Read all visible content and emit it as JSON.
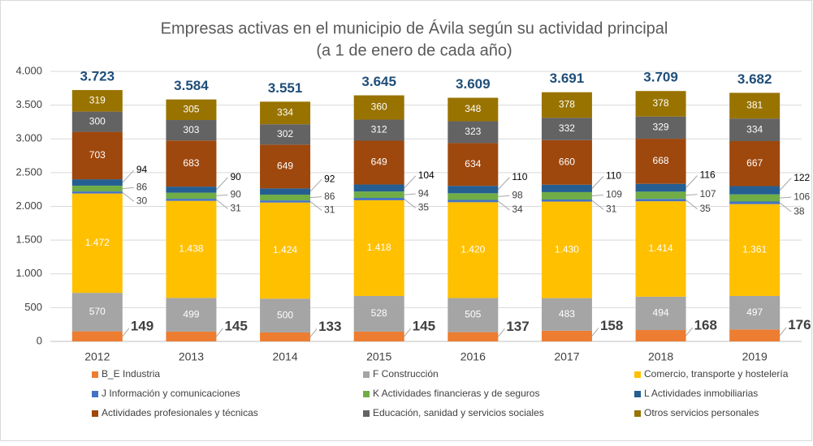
{
  "chart_data": {
    "type": "stacked_bar",
    "title": "Empresas activas en el municipio de Ávila según su actividad principal",
    "subtitle": "(a 1 de enero de cada año)",
    "categories": [
      "2012",
      "2013",
      "2014",
      "2015",
      "2016",
      "2017",
      "2018",
      "2019"
    ],
    "series": [
      {
        "name": "B_E Industria",
        "color": "#ed7d31",
        "values": [
          149,
          145,
          133,
          145,
          137,
          158,
          168,
          176
        ]
      },
      {
        "name": "F Construcción",
        "color": "#a5a5a5",
        "values": [
          570,
          499,
          500,
          528,
          505,
          483,
          494,
          497
        ]
      },
      {
        "name": "Comercio, transporte y hostelería",
        "color": "#ffc000",
        "values": [
          1472,
          1438,
          1424,
          1418,
          1420,
          1430,
          1414,
          1361
        ],
        "value_labels": [
          "1.472",
          "1.438",
          "1.424",
          "1.418",
          "1.420",
          "1.430",
          "1.414",
          "1.361"
        ]
      },
      {
        "name": "J Información y comunicaciones",
        "color": "#4472c4",
        "values": [
          30,
          31,
          31,
          35,
          34,
          31,
          35,
          38
        ]
      },
      {
        "name": "K Actividades financieras y de seguros",
        "color": "#70ad47",
        "values": [
          86,
          90,
          86,
          94,
          98,
          109,
          107,
          106
        ]
      },
      {
        "name": "L Actividades inmobiliarias",
        "color": "#255e91",
        "values": [
          94,
          90,
          92,
          104,
          110,
          110,
          116,
          122
        ]
      },
      {
        "name": "Actividades profesionales y técnicas",
        "color": "#9e480e",
        "values": [
          703,
          683,
          649,
          649,
          634,
          660,
          668,
          667
        ]
      },
      {
        "name": "Educación, sanidad y servicios sociales",
        "color": "#636363",
        "values": [
          300,
          303,
          302,
          312,
          323,
          332,
          329,
          334
        ]
      },
      {
        "name": "Otros servicios personales",
        "color": "#997300",
        "values": [
          319,
          305,
          334,
          360,
          348,
          378,
          378,
          381
        ]
      }
    ],
    "totals": {
      "values": [
        3723,
        3584,
        3551,
        3645,
        3609,
        3691,
        3709,
        3682
      ],
      "value_labels": [
        "3.723",
        "3.584",
        "3.551",
        "3.645",
        "3.609",
        "3.691",
        "3.709",
        "3.682"
      ],
      "color": "#1f4e79"
    },
    "ylim": [
      0,
      4000
    ],
    "yticks": [
      0,
      500,
      {
        "value": 1000,
        "label": "1.000"
      },
      {
        "value": 1500,
        "label": "1.500"
      },
      {
        "value": 2000,
        "label": "2.000"
      },
      {
        "value": 2500,
        "label": "2.500"
      },
      {
        "value": 3000,
        "label": "3.000"
      },
      {
        "value": 3500,
        "label": "3.500"
      },
      {
        "value": 4000,
        "label": "4.000"
      }
    ],
    "grid": true
  }
}
